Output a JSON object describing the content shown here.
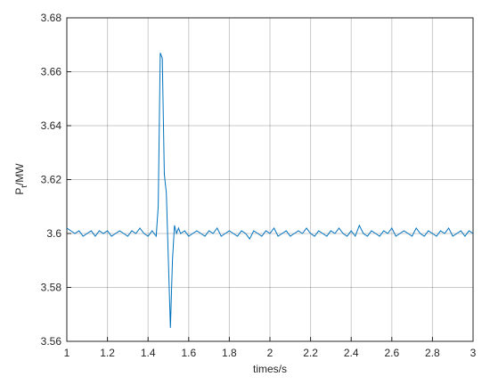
{
  "chart_data": {
    "type": "line",
    "xlabel": "times/s",
    "ylabel": [
      "P",
      "t",
      "/MW"
    ],
    "xlim": [
      1,
      3
    ],
    "xticks": [
      1,
      1.2,
      1.4,
      1.6,
      1.8,
      2,
      2.2,
      2.4,
      2.6,
      2.8,
      3
    ],
    "ylim": [
      3.56,
      3.68
    ],
    "yticks": [
      3.56,
      3.58,
      3.6,
      3.62,
      3.64,
      3.66,
      3.68
    ],
    "grid": true,
    "x": [
      1,
      1.02,
      1.04,
      1.06,
      1.08,
      1.1,
      1.12,
      1.14,
      1.16,
      1.18,
      1.2,
      1.22,
      1.24,
      1.26,
      1.28,
      1.3,
      1.32,
      1.34,
      1.36,
      1.38,
      1.4,
      1.42,
      1.43,
      1.44,
      1.45,
      1.46,
      1.47,
      1.48,
      1.49,
      1.5,
      1.51,
      1.52,
      1.53,
      1.54,
      1.55,
      1.56,
      1.58,
      1.6,
      1.62,
      1.64,
      1.66,
      1.68,
      1.7,
      1.72,
      1.74,
      1.76,
      1.78,
      1.8,
      1.82,
      1.84,
      1.86,
      1.88,
      1.9,
      1.92,
      1.94,
      1.96,
      1.98,
      2,
      2.02,
      2.04,
      2.06,
      2.08,
      2.1,
      2.12,
      2.14,
      2.16,
      2.18,
      2.2,
      2.22,
      2.24,
      2.26,
      2.28,
      2.3,
      2.32,
      2.34,
      2.36,
      2.38,
      2.4,
      2.42,
      2.44,
      2.46,
      2.48,
      2.5,
      2.52,
      2.54,
      2.56,
      2.58,
      2.6,
      2.62,
      2.64,
      2.66,
      2.68,
      2.7,
      2.72,
      2.74,
      2.76,
      2.78,
      2.8,
      2.82,
      2.84,
      2.86,
      2.88,
      2.9,
      2.92,
      2.94,
      2.96,
      2.98,
      3
    ],
    "series": [
      {
        "name": "Pt",
        "color": "#0072bd",
        "values": [
          3.602,
          3.601,
          3.6,
          3.601,
          3.599,
          3.6,
          3.601,
          3.599,
          3.601,
          3.6,
          3.601,
          3.599,
          3.6,
          3.601,
          3.6,
          3.599,
          3.601,
          3.6,
          3.602,
          3.6,
          3.599,
          3.601,
          3.6,
          3.599,
          3.61,
          3.667,
          3.665,
          3.622,
          3.615,
          3.59,
          3.565,
          3.59,
          3.603,
          3.6,
          3.602,
          3.6,
          3.601,
          3.599,
          3.6,
          3.601,
          3.6,
          3.599,
          3.601,
          3.6,
          3.602,
          3.599,
          3.6,
          3.601,
          3.6,
          3.599,
          3.601,
          3.6,
          3.598,
          3.601,
          3.6,
          3.599,
          3.601,
          3.6,
          3.602,
          3.599,
          3.6,
          3.601,
          3.599,
          3.6,
          3.601,
          3.6,
          3.602,
          3.6,
          3.599,
          3.601,
          3.6,
          3.599,
          3.601,
          3.6,
          3.602,
          3.6,
          3.599,
          3.601,
          3.599,
          3.603,
          3.6,
          3.599,
          3.601,
          3.6,
          3.599,
          3.601,
          3.6,
          3.602,
          3.599,
          3.6,
          3.601,
          3.6,
          3.599,
          3.602,
          3.6,
          3.599,
          3.601,
          3.6,
          3.599,
          3.601,
          3.6,
          3.602,
          3.599,
          3.6,
          3.601,
          3.599,
          3.601,
          3.6
        ]
      }
    ]
  }
}
